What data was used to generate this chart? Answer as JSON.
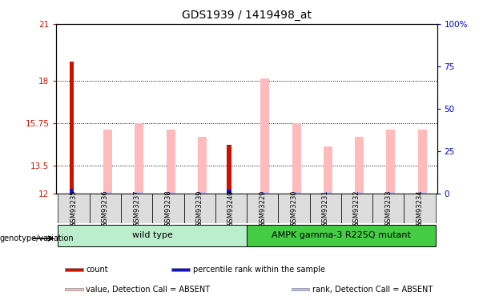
{
  "title": "GDS1939 / 1419498_at",
  "samples": [
    "GSM93235",
    "GSM93236",
    "GSM93237",
    "GSM93238",
    "GSM93239",
    "GSM93240",
    "GSM93229",
    "GSM93230",
    "GSM93231",
    "GSM93232",
    "GSM93233",
    "GSM93234"
  ],
  "groups": [
    {
      "label": "wild type",
      "indices": [
        0,
        5
      ],
      "color": "#bbeecc"
    },
    {
      "label": "AMPK gamma-3 R225Q mutant",
      "indices": [
        6,
        11
      ],
      "color": "#44dd44"
    }
  ],
  "red_bars": [
    19.0,
    null,
    null,
    null,
    null,
    14.6,
    null,
    null,
    null,
    null,
    null,
    null
  ],
  "pink_bars": [
    null,
    15.4,
    15.75,
    15.4,
    15.0,
    null,
    18.1,
    15.75,
    14.5,
    15.0,
    15.4,
    15.4
  ],
  "blue_bars": [
    12.25,
    null,
    null,
    null,
    null,
    12.2,
    null,
    null,
    null,
    null,
    null,
    null
  ],
  "lavender_bars": [
    null,
    12.1,
    12.1,
    12.1,
    12.1,
    null,
    12.1,
    12.1,
    12.1,
    12.1,
    12.1,
    12.1
  ],
  "ylim_left": [
    12,
    21
  ],
  "ylim_right": [
    0,
    100
  ],
  "yticks_left": [
    12,
    13.5,
    15.75,
    18,
    21
  ],
  "yticks_right": [
    0,
    25,
    50,
    75,
    100
  ],
  "ytick_labels_left": [
    "12",
    "13.5",
    "15.75",
    "18",
    "21"
  ],
  "ytick_labels_right": [
    "0",
    "25",
    "50",
    "75",
    "100%"
  ],
  "hlines": [
    13.5,
    15.75,
    18
  ],
  "red_color": "#cc1100",
  "pink_color": "#ffbbbb",
  "blue_color": "#1111cc",
  "lavender_color": "#bbbbff",
  "legend_items": [
    {
      "color": "#cc1100",
      "label": "count"
    },
    {
      "color": "#1111cc",
      "label": "percentile rank within the sample"
    },
    {
      "color": "#ffbbbb",
      "label": "value, Detection Call = ABSENT"
    },
    {
      "color": "#bbbbff",
      "label": "rank, Detection Call = ABSENT"
    }
  ],
  "genotype_label": "genotype/variation",
  "background_color": "#ffffff",
  "tick_label_color_left": "#cc1100",
  "tick_label_color_right": "#0000cc"
}
